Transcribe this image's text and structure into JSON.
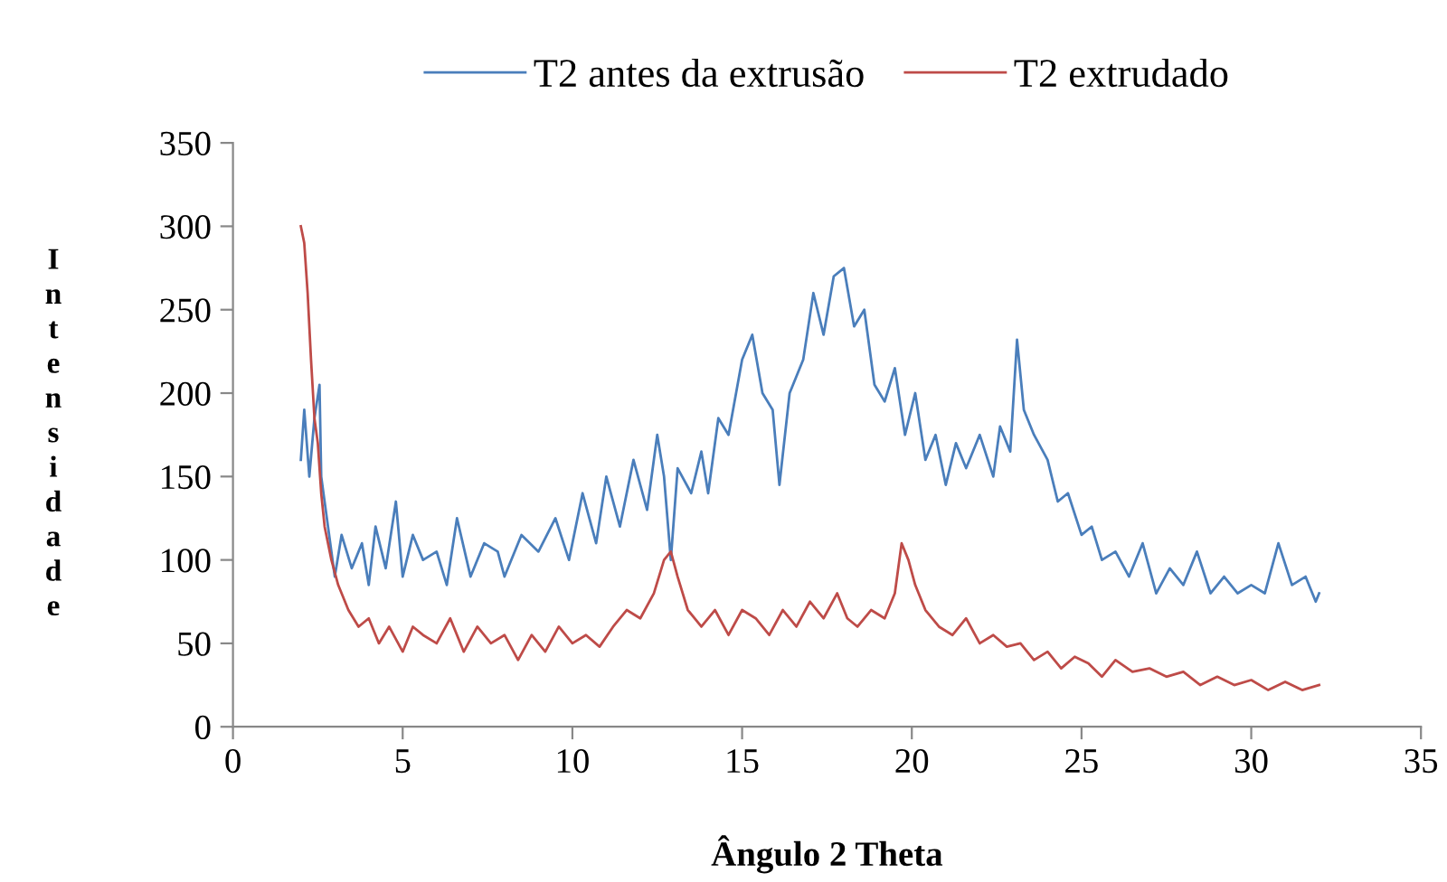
{
  "chart_data": {
    "type": "line",
    "xlabel": "Ângulo 2 Theta",
    "ylabel": "Intensidade",
    "xlim": [
      0,
      35
    ],
    "xticks": [
      0,
      5,
      10,
      15,
      20,
      25,
      30,
      35
    ],
    "ylim": [
      0,
      350
    ],
    "yticks": [
      0,
      50,
      100,
      150,
      200,
      250,
      300,
      350
    ],
    "grid": false,
    "legend": "top",
    "marker": "none",
    "line_style": "solid",
    "series": [
      {
        "name": "T2 antes da extrusão",
        "color": "#4a7ebb",
        "x": [
          2.0,
          2.1,
          2.25,
          2.4,
          2.55,
          2.6,
          2.8,
          3.0,
          3.2,
          3.5,
          3.8,
          4.0,
          4.2,
          4.5,
          4.8,
          5.0,
          5.3,
          5.6,
          6.0,
          6.3,
          6.6,
          7.0,
          7.4,
          7.8,
          8.0,
          8.5,
          9.0,
          9.5,
          9.9,
          10.3,
          10.7,
          11.0,
          11.4,
          11.8,
          12.2,
          12.5,
          12.7,
          12.9,
          13.1,
          13.5,
          13.8,
          14.0,
          14.3,
          14.6,
          15.0,
          15.3,
          15.6,
          15.9,
          16.1,
          16.4,
          16.8,
          17.1,
          17.4,
          17.7,
          18.0,
          18.3,
          18.6,
          18.9,
          19.2,
          19.5,
          19.8,
          20.1,
          20.4,
          20.7,
          21.0,
          21.3,
          21.6,
          22.0,
          22.4,
          22.6,
          22.9,
          23.1,
          23.3,
          23.6,
          24.0,
          24.3,
          24.6,
          25.0,
          25.3,
          25.6,
          26.0,
          26.4,
          26.8,
          27.2,
          27.6,
          28.0,
          28.4,
          28.8,
          29.2,
          29.6,
          30.0,
          30.4,
          30.8,
          31.2,
          31.6,
          31.9,
          32.0
        ],
        "values": [
          160,
          190,
          150,
          185,
          205,
          150,
          120,
          90,
          115,
          95,
          110,
          85,
          120,
          95,
          135,
          90,
          115,
          100,
          105,
          85,
          125,
          90,
          110,
          105,
          90,
          115,
          105,
          125,
          100,
          140,
          110,
          150,
          120,
          160,
          130,
          175,
          150,
          100,
          155,
          140,
          165,
          140,
          185,
          175,
          220,
          235,
          200,
          190,
          145,
          200,
          220,
          260,
          235,
          270,
          275,
          240,
          250,
          205,
          195,
          215,
          175,
          200,
          160,
          175,
          145,
          170,
          155,
          175,
          150,
          180,
          165,
          232,
          190,
          175,
          160,
          135,
          140,
          115,
          120,
          100,
          105,
          90,
          110,
          80,
          95,
          85,
          105,
          80,
          90,
          80,
          85,
          80,
          110,
          85,
          90,
          75,
          80
        ]
      },
      {
        "name": "T2 extrudado",
        "color": "#be4b48",
        "x": [
          2.0,
          2.1,
          2.2,
          2.3,
          2.4,
          2.5,
          2.6,
          2.7,
          2.9,
          3.1,
          3.4,
          3.7,
          4.0,
          4.3,
          4.6,
          5.0,
          5.3,
          5.6,
          6.0,
          6.4,
          6.8,
          7.2,
          7.6,
          8.0,
          8.4,
          8.8,
          9.2,
          9.6,
          10.0,
          10.4,
          10.8,
          11.2,
          11.6,
          12.0,
          12.4,
          12.7,
          12.9,
          13.1,
          13.4,
          13.8,
          14.2,
          14.6,
          15.0,
          15.4,
          15.8,
          16.2,
          16.6,
          17.0,
          17.4,
          17.8,
          18.1,
          18.4,
          18.8,
          19.2,
          19.5,
          19.7,
          19.9,
          20.1,
          20.4,
          20.8,
          21.2,
          21.6,
          22.0,
          22.4,
          22.8,
          23.2,
          23.6,
          24.0,
          24.4,
          24.8,
          25.2,
          25.6,
          26.0,
          26.5,
          27.0,
          27.5,
          28.0,
          28.5,
          29.0,
          29.5,
          30.0,
          30.5,
          31.0,
          31.5,
          32.0
        ],
        "values": [
          300,
          290,
          260,
          220,
          185,
          170,
          140,
          120,
          100,
          85,
          70,
          60,
          65,
          50,
          60,
          45,
          60,
          55,
          50,
          65,
          45,
          60,
          50,
          55,
          40,
          55,
          45,
          60,
          50,
          55,
          48,
          60,
          70,
          65,
          80,
          100,
          105,
          90,
          70,
          60,
          70,
          55,
          70,
          65,
          55,
          70,
          60,
          75,
          65,
          80,
          65,
          60,
          70,
          65,
          80,
          110,
          100,
          85,
          70,
          60,
          55,
          65,
          50,
          55,
          48,
          50,
          40,
          45,
          35,
          42,
          38,
          30,
          40,
          33,
          35,
          30,
          33,
          25,
          30,
          25,
          28,
          22,
          27,
          22,
          25
        ]
      }
    ]
  }
}
